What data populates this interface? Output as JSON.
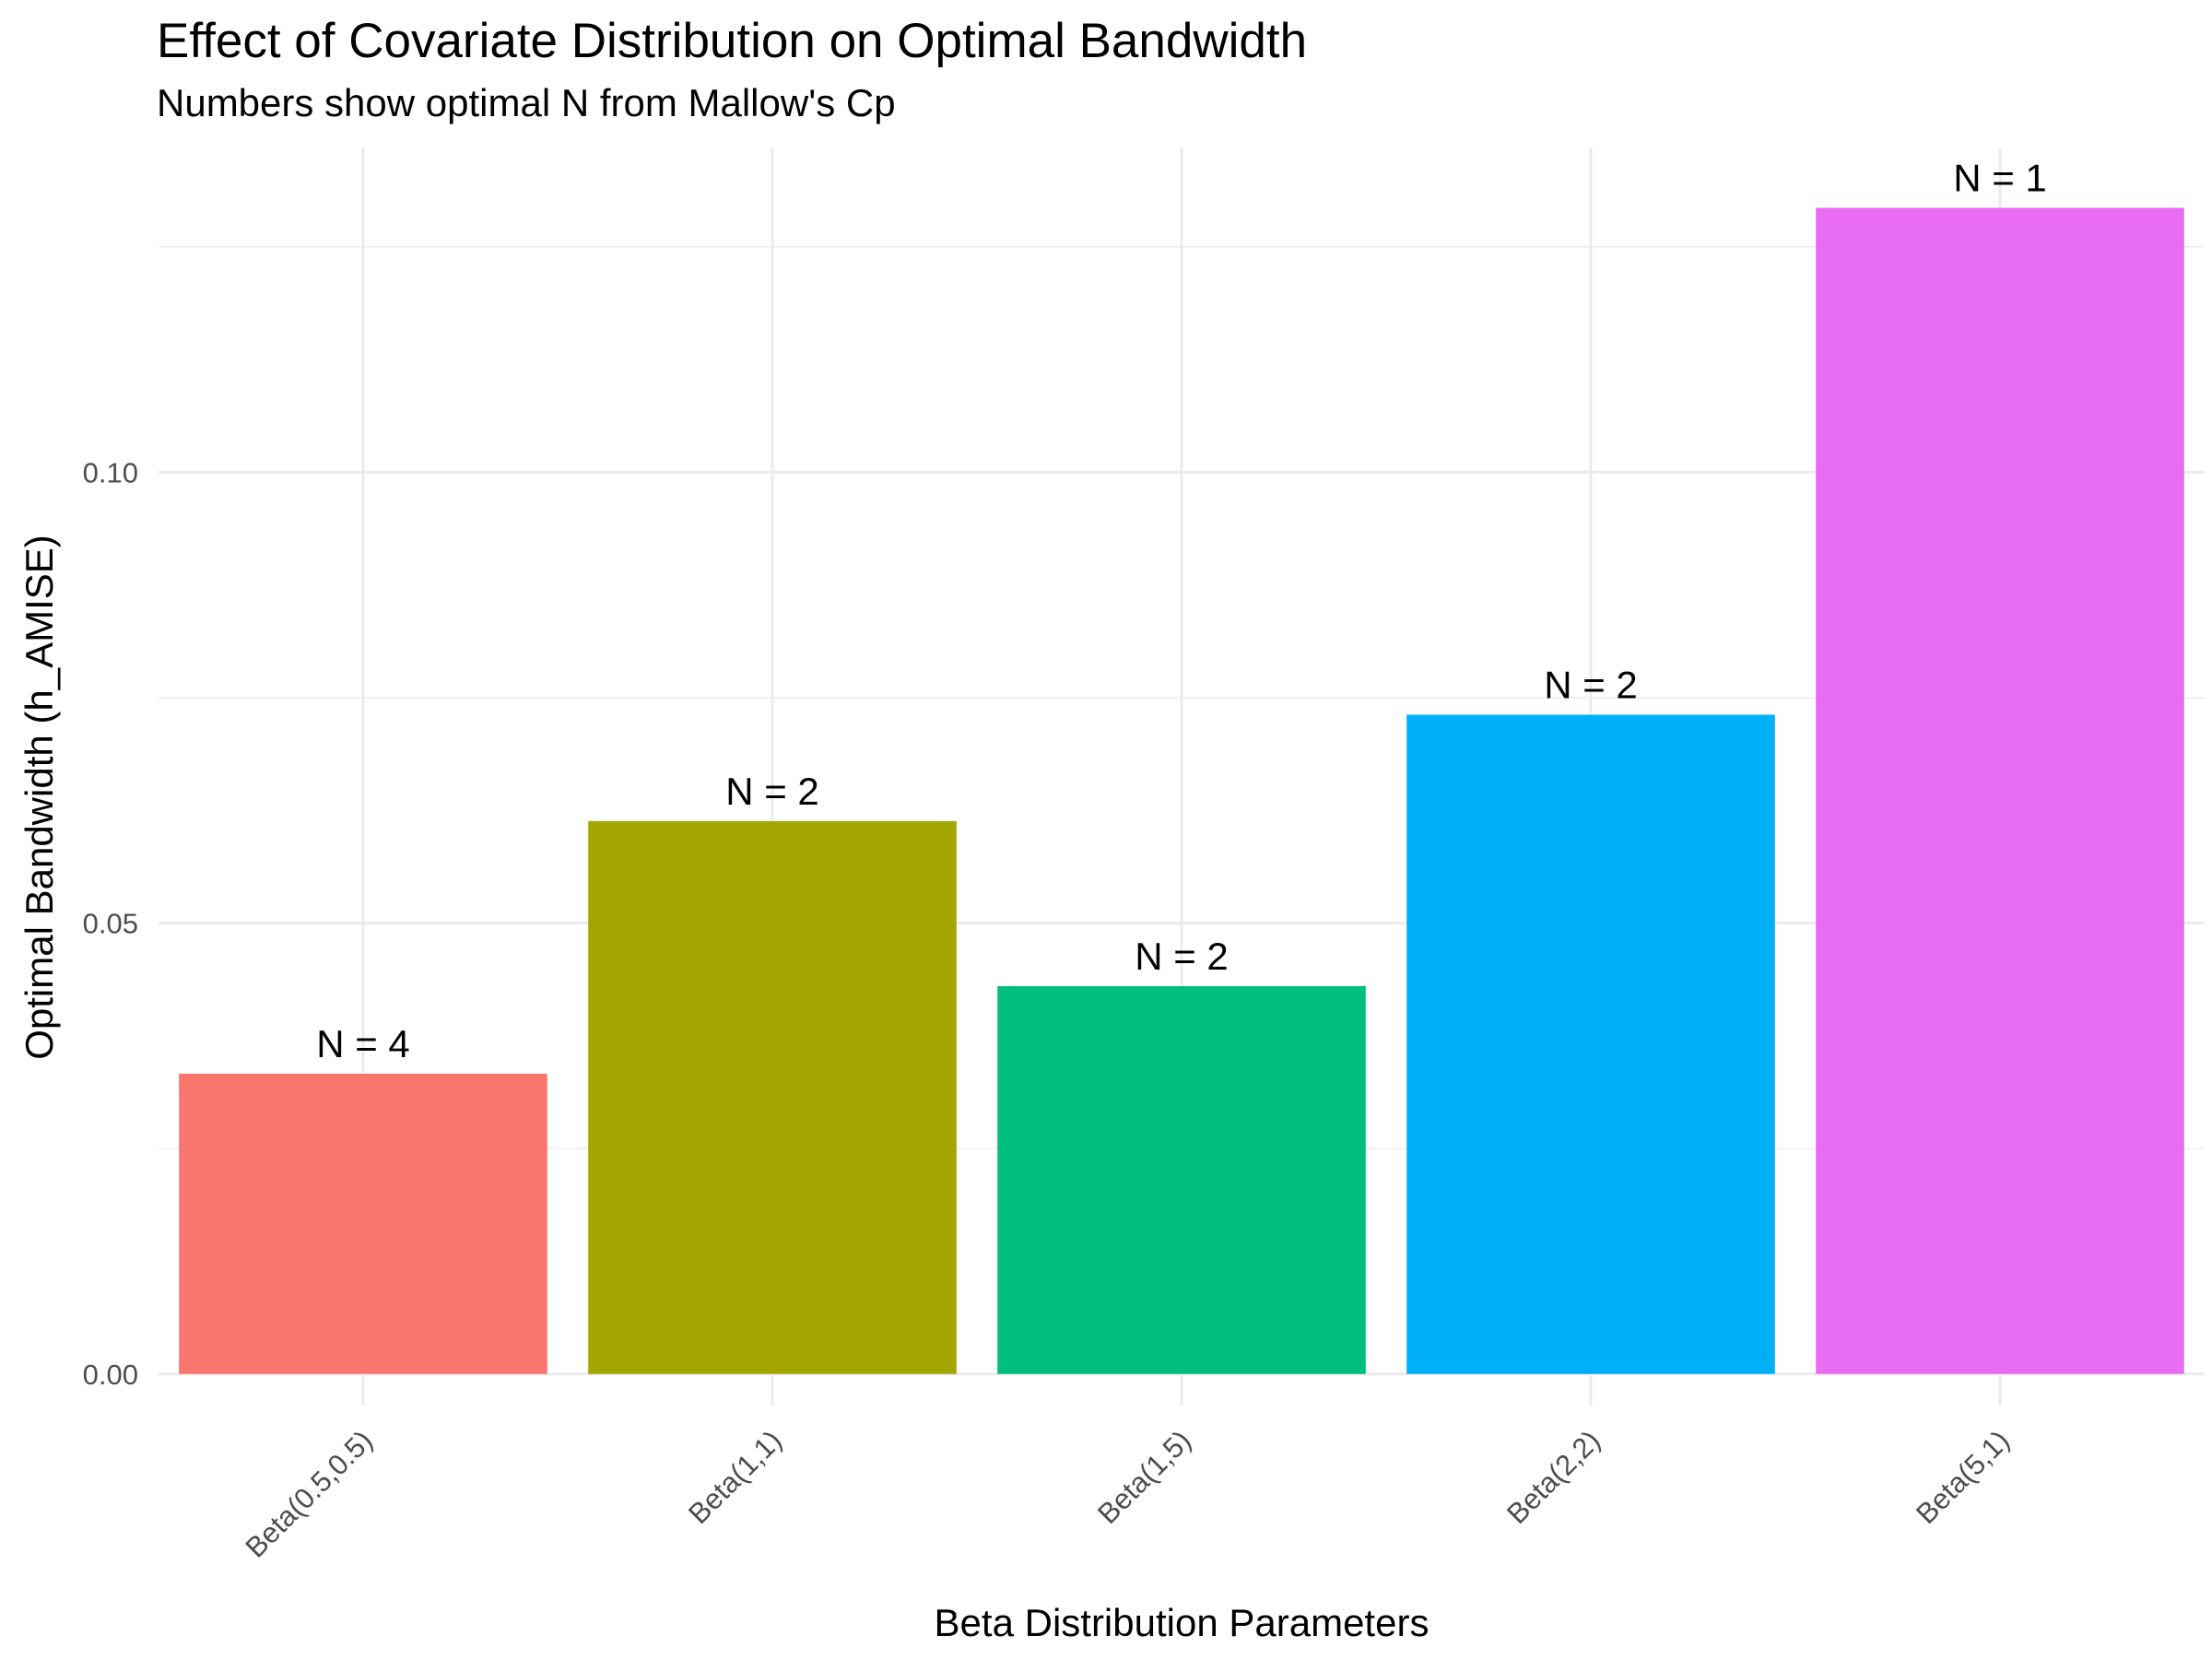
{
  "chart_data": {
    "type": "bar",
    "title": "Effect of Covariate Distribution on Optimal Bandwidth",
    "subtitle": "Numbers show optimal N from Mallow's Cp",
    "xlabel": "Beta Distribution Parameters",
    "ylabel": "Optimal Bandwidth (h_AMISE)",
    "categories": [
      "Beta(0.5,0.5)",
      "Beta(1,1)",
      "Beta(1,5)",
      "Beta(2,2)",
      "Beta(5,1)"
    ],
    "values": [
      0.0333,
      0.0613,
      0.043,
      0.0731,
      0.1293
    ],
    "bar_labels": [
      "N = 4",
      "N = 2",
      "N = 2",
      "N = 2",
      "N = 1"
    ],
    "colors": [
      "#F8766D",
      "#A3A500",
      "#00BF7D",
      "#00B0F6",
      "#E76BF3"
    ],
    "ylim": [
      -0.0035,
      0.136
    ],
    "yticks": [
      0.0,
      0.05,
      0.1
    ],
    "ytick_labels": [
      "0.00",
      "0.05",
      "0.10"
    ],
    "grid": true,
    "legend": "none"
  }
}
